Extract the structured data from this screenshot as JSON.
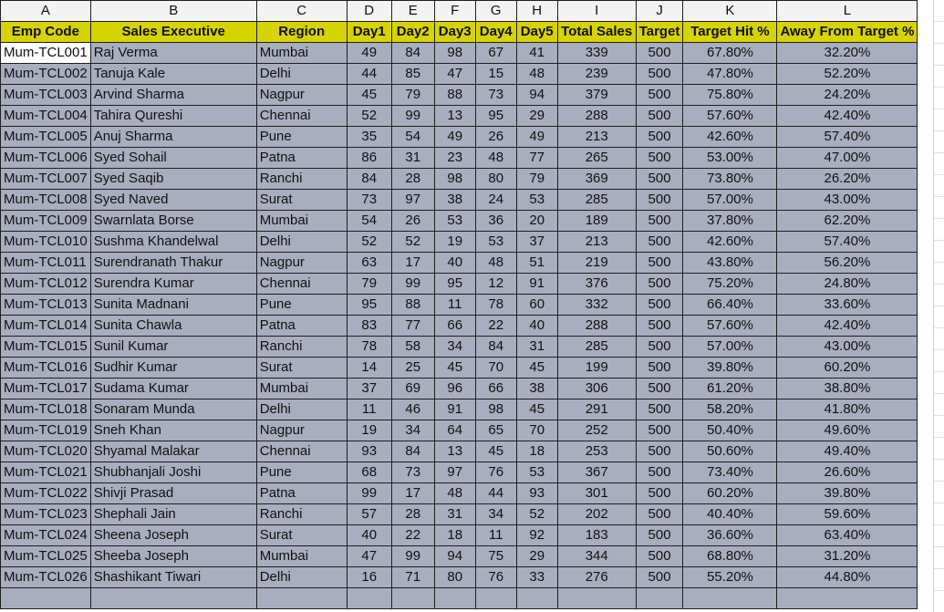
{
  "columns": [
    "A",
    "B",
    "C",
    "D",
    "E",
    "F",
    "G",
    "H",
    "I",
    "J",
    "K",
    "L"
  ],
  "headers": [
    "Emp Code",
    "Sales Executive",
    "Region",
    "Day1",
    "Day2",
    "Day3",
    "Day4",
    "Day5",
    "Total Sales",
    "Target",
    "Target Hit %",
    "Away From Target %"
  ],
  "rows": [
    [
      "Mum-TCL001",
      "Raj Verma",
      "Mumbai",
      "49",
      "84",
      "98",
      "67",
      "41",
      "339",
      "500",
      "67.80%",
      "32.20%"
    ],
    [
      "Mum-TCL002",
      "Tanuja Kale",
      "Delhi",
      "44",
      "85",
      "47",
      "15",
      "48",
      "239",
      "500",
      "47.80%",
      "52.20%"
    ],
    [
      "Mum-TCL003",
      "Arvind Sharma",
      "Nagpur",
      "45",
      "79",
      "88",
      "73",
      "94",
      "379",
      "500",
      "75.80%",
      "24.20%"
    ],
    [
      "Mum-TCL004",
      "Tahira Qureshi",
      "Chennai",
      "52",
      "99",
      "13",
      "95",
      "29",
      "288",
      "500",
      "57.60%",
      "42.40%"
    ],
    [
      "Mum-TCL005",
      "Anuj Sharma",
      "Pune",
      "35",
      "54",
      "49",
      "26",
      "49",
      "213",
      "500",
      "42.60%",
      "57.40%"
    ],
    [
      "Mum-TCL006",
      "Syed Sohail",
      "Patna",
      "86",
      "31",
      "23",
      "48",
      "77",
      "265",
      "500",
      "53.00%",
      "47.00%"
    ],
    [
      "Mum-TCL007",
      "Syed Saqib",
      "Ranchi",
      "84",
      "28",
      "98",
      "80",
      "79",
      "369",
      "500",
      "73.80%",
      "26.20%"
    ],
    [
      "Mum-TCL008",
      "Syed Naved",
      "Surat",
      "73",
      "97",
      "38",
      "24",
      "53",
      "285",
      "500",
      "57.00%",
      "43.00%"
    ],
    [
      "Mum-TCL009",
      "Swarnlata Borse",
      "Mumbai",
      "54",
      "26",
      "53",
      "36",
      "20",
      "189",
      "500",
      "37.80%",
      "62.20%"
    ],
    [
      "Mum-TCL010",
      "Sushma Khandelwal",
      "Delhi",
      "52",
      "52",
      "19",
      "53",
      "37",
      "213",
      "500",
      "42.60%",
      "57.40%"
    ],
    [
      "Mum-TCL011",
      "Surendranath Thakur",
      "Nagpur",
      "63",
      "17",
      "40",
      "48",
      "51",
      "219",
      "500",
      "43.80%",
      "56.20%"
    ],
    [
      "Mum-TCL012",
      "Surendra Kumar",
      "Chennai",
      "79",
      "99",
      "95",
      "12",
      "91",
      "376",
      "500",
      "75.20%",
      "24.80%"
    ],
    [
      "Mum-TCL013",
      "Sunita Madnani",
      "Pune",
      "95",
      "88",
      "11",
      "78",
      "60",
      "332",
      "500",
      "66.40%",
      "33.60%"
    ],
    [
      "Mum-TCL014",
      "Sunita Chawla",
      "Patna",
      "83",
      "77",
      "66",
      "22",
      "40",
      "288",
      "500",
      "57.60%",
      "42.40%"
    ],
    [
      "Mum-TCL015",
      "Sunil Kumar",
      "Ranchi",
      "78",
      "58",
      "34",
      "84",
      "31",
      "285",
      "500",
      "57.00%",
      "43.00%"
    ],
    [
      "Mum-TCL016",
      "Sudhir Kumar",
      "Surat",
      "14",
      "25",
      "45",
      "70",
      "45",
      "199",
      "500",
      "39.80%",
      "60.20%"
    ],
    [
      "Mum-TCL017",
      "Sudama Kumar",
      "Mumbai",
      "37",
      "69",
      "96",
      "66",
      "38",
      "306",
      "500",
      "61.20%",
      "38.80%"
    ],
    [
      "Mum-TCL018",
      "Sonaram Munda",
      "Delhi",
      "11",
      "46",
      "91",
      "98",
      "45",
      "291",
      "500",
      "58.20%",
      "41.80%"
    ],
    [
      "Mum-TCL019",
      "Sneh Khan",
      "Nagpur",
      "19",
      "34",
      "64",
      "65",
      "70",
      "252",
      "500",
      "50.40%",
      "49.60%"
    ],
    [
      "Mum-TCL020",
      "Shyamal Malakar",
      "Chennai",
      "93",
      "84",
      "13",
      "45",
      "18",
      "253",
      "500",
      "50.60%",
      "49.40%"
    ],
    [
      "Mum-TCL021",
      "Shubhanjali Joshi",
      "Pune",
      "68",
      "73",
      "97",
      "76",
      "53",
      "367",
      "500",
      "73.40%",
      "26.60%"
    ],
    [
      "Mum-TCL022",
      "Shivji Prasad",
      "Patna",
      "99",
      "17",
      "48",
      "44",
      "93",
      "301",
      "500",
      "60.20%",
      "39.80%"
    ],
    [
      "Mum-TCL023",
      "Shephali Jain",
      "Ranchi",
      "57",
      "28",
      "31",
      "34",
      "52",
      "202",
      "500",
      "40.40%",
      "59.60%"
    ],
    [
      "Mum-TCL024",
      "Sheena Joseph",
      "Surat",
      "40",
      "22",
      "18",
      "11",
      "92",
      "183",
      "500",
      "36.60%",
      "63.40%"
    ],
    [
      "Mum-TCL025",
      "Sheeba Joseph",
      "Mumbai",
      "47",
      "99",
      "94",
      "75",
      "29",
      "344",
      "500",
      "68.80%",
      "31.20%"
    ],
    [
      "Mum-TCL026",
      "Shashikant Tiwari",
      "Delhi",
      "16",
      "71",
      "80",
      "76",
      "33",
      "276",
      "500",
      "55.20%",
      "44.80%"
    ]
  ],
  "colors": {
    "header_fill": "#d6d300",
    "data_fill": "#a9adc0",
    "column_letter": "#217346"
  }
}
